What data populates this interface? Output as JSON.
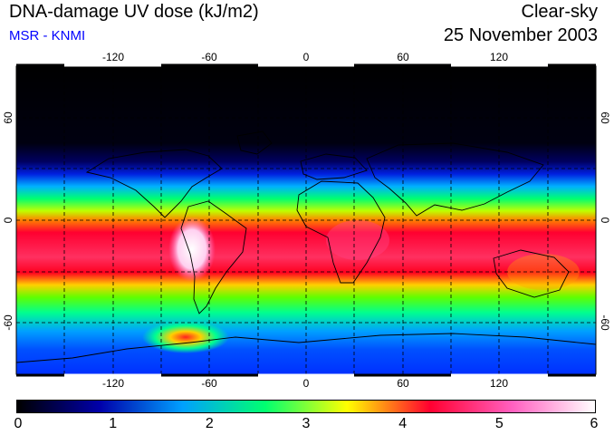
{
  "header": {
    "title": "DNA-damage UV dose (kJ/m2)",
    "subtitle": "MSR - KNMI",
    "mode": "Clear-sky",
    "date": "25 November 2003"
  },
  "map": {
    "lon_ticks": [
      "-120",
      "-60",
      "0",
      "60",
      "120"
    ],
    "lat_ticks": [
      "60",
      "0",
      "-60"
    ],
    "gridlines": "dashed"
  },
  "colorbar": {
    "labels": [
      "0",
      "1",
      "2",
      "3",
      "4",
      "5",
      "6"
    ],
    "min": 0,
    "max": 6,
    "stops": [
      "#000000",
      "#0000aa",
      "#00a0ff",
      "#00ff70",
      "#ffff00",
      "#ff0030",
      "#ff60c0",
      "#ffffff"
    ]
  },
  "colors": {
    "subtitle": "#0000ff",
    "text": "#000000"
  }
}
